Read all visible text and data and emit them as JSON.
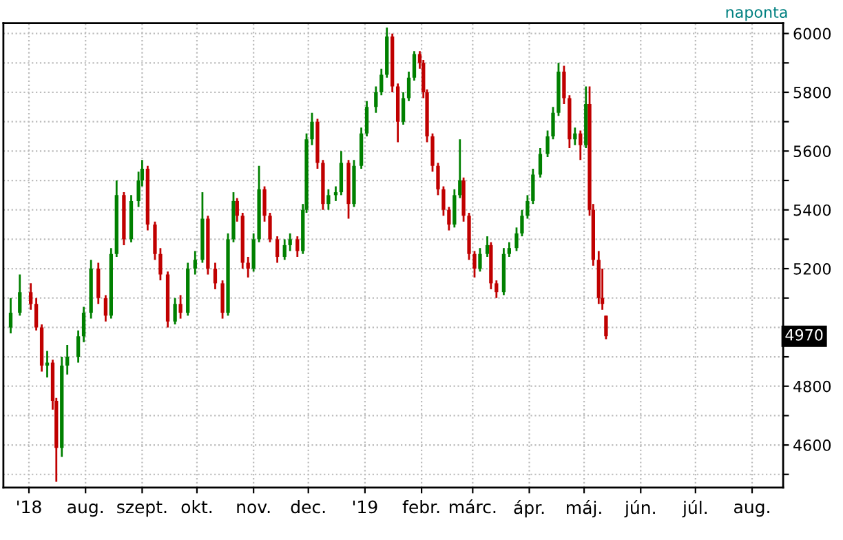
{
  "chart_data": {
    "type": "candlestick",
    "x": [
      "2018-06-21",
      "2018-06-26",
      "2018-07-02",
      "2018-07-05",
      "2018-07-08",
      "2018-07-11",
      "2018-07-14",
      "2018-07-16",
      "2018-07-19",
      "2018-07-22",
      "2018-07-28",
      "2018-07-31",
      "2018-08-04",
      "2018-08-08",
      "2018-08-12",
      "2018-08-15",
      "2018-08-18",
      "2018-08-22",
      "2018-08-26",
      "2018-08-30",
      "2018-09-01",
      "2018-09-04",
      "2018-09-08",
      "2018-09-11",
      "2018-09-15",
      "2018-09-19",
      "2018-09-22",
      "2018-09-26",
      "2018-09-30",
      "2018-10-04",
      "2018-10-07",
      "2018-10-11",
      "2018-10-15",
      "2018-10-18",
      "2018-10-21",
      "2018-10-23",
      "2018-10-26",
      "2018-10-29",
      "2018-11-01",
      "2018-11-04",
      "2018-11-07",
      "2018-11-10",
      "2018-11-14",
      "2018-11-18",
      "2018-11-21",
      "2018-11-25",
      "2018-11-28",
      "2018-11-30",
      "2018-12-03",
      "2018-12-06",
      "2018-12-09",
      "2018-12-12",
      "2018-12-16",
      "2018-12-19",
      "2018-12-23",
      "2018-12-26",
      "2018-12-30",
      "2019-01-02",
      "2019-01-07",
      "2019-01-10",
      "2019-01-13",
      "2019-01-16",
      "2019-01-19",
      "2019-01-22",
      "2019-01-25",
      "2019-01-28",
      "2019-01-31",
      "2019-02-02",
      "2019-02-04",
      "2019-02-07",
      "2019-02-10",
      "2019-02-13",
      "2019-02-16",
      "2019-02-19",
      "2019-02-22",
      "2019-02-24",
      "2019-02-27",
      "2019-03-02",
      "2019-03-05",
      "2019-03-09",
      "2019-03-11",
      "2019-03-14",
      "2019-03-18",
      "2019-03-21",
      "2019-03-25",
      "2019-03-28",
      "2019-03-31",
      "2019-04-03",
      "2019-04-07",
      "2019-04-11",
      "2019-04-14",
      "2019-04-17",
      "2019-04-20",
      "2019-04-23",
      "2019-04-26",
      "2019-04-29",
      "2019-05-02",
      "2019-05-04",
      "2019-05-06",
      "2019-05-09",
      "2019-05-11",
      "2019-05-13"
    ],
    "ohlc": [
      [
        5000,
        5100,
        4980,
        5050
      ],
      [
        5050,
        5180,
        5040,
        5120
      ],
      [
        5120,
        5150,
        5060,
        5080
      ],
      [
        5080,
        5100,
        4990,
        5000
      ],
      [
        5000,
        5010,
        4850,
        4870
      ],
      [
        4870,
        4920,
        4830,
        4880
      ],
      [
        4880,
        4890,
        4720,
        4750
      ],
      [
        4750,
        4760,
        4475,
        4590
      ],
      [
        4590,
        4900,
        4560,
        4870
      ],
      [
        4870,
        4940,
        4840,
        4900
      ],
      [
        4900,
        4990,
        4880,
        4970
      ],
      [
        4970,
        5070,
        4950,
        5050
      ],
      [
        5050,
        5230,
        5030,
        5200
      ],
      [
        5200,
        5220,
        5080,
        5100
      ],
      [
        5100,
        5110,
        5020,
        5040
      ],
      [
        5040,
        5270,
        5030,
        5250
      ],
      [
        5250,
        5500,
        5240,
        5450
      ],
      [
        5450,
        5460,
        5280,
        5300
      ],
      [
        5300,
        5450,
        5290,
        5430
      ],
      [
        5430,
        5530,
        5410,
        5500
      ],
      [
        5500,
        5570,
        5480,
        5540
      ],
      [
        5540,
        5550,
        5330,
        5350
      ],
      [
        5350,
        5360,
        5230,
        5250
      ],
      [
        5250,
        5270,
        5160,
        5180
      ],
      [
        5180,
        5190,
        5000,
        5020
      ],
      [
        5020,
        5100,
        5010,
        5080
      ],
      [
        5080,
        5110,
        5030,
        5050
      ],
      [
        5050,
        5220,
        5040,
        5200
      ],
      [
        5200,
        5260,
        5180,
        5230
      ],
      [
        5230,
        5460,
        5220,
        5370
      ],
      [
        5370,
        5380,
        5180,
        5200
      ],
      [
        5200,
        5220,
        5130,
        5150
      ],
      [
        5150,
        5160,
        5030,
        5050
      ],
      [
        5050,
        5320,
        5040,
        5300
      ],
      [
        5300,
        5460,
        5290,
        5430
      ],
      [
        5430,
        5440,
        5360,
        5380
      ],
      [
        5380,
        5390,
        5200,
        5220
      ],
      [
        5220,
        5240,
        5170,
        5200
      ],
      [
        5200,
        5320,
        5190,
        5300
      ],
      [
        5300,
        5550,
        5290,
        5470
      ],
      [
        5470,
        5480,
        5360,
        5380
      ],
      [
        5380,
        5390,
        5290,
        5300
      ],
      [
        5300,
        5310,
        5220,
        5240
      ],
      [
        5240,
        5300,
        5230,
        5280
      ],
      [
        5280,
        5320,
        5260,
        5300
      ],
      [
        5300,
        5310,
        5240,
        5260
      ],
      [
        5260,
        5420,
        5250,
        5400
      ],
      [
        5400,
        5660,
        5390,
        5640
      ],
      [
        5640,
        5730,
        5620,
        5700
      ],
      [
        5700,
        5710,
        5540,
        5560
      ],
      [
        5560,
        5570,
        5400,
        5420
      ],
      [
        5420,
        5470,
        5400,
        5450
      ],
      [
        5450,
        5480,
        5430,
        5460
      ],
      [
        5460,
        5600,
        5450,
        5560
      ],
      [
        5560,
        5570,
        5370,
        5420
      ],
      [
        5420,
        5570,
        5410,
        5550
      ],
      [
        5550,
        5680,
        5540,
        5660
      ],
      [
        5660,
        5770,
        5650,
        5750
      ],
      [
        5750,
        5820,
        5730,
        5800
      ],
      [
        5800,
        5880,
        5790,
        5860
      ],
      [
        5860,
        6020,
        5850,
        5990
      ],
      [
        5990,
        6000,
        5800,
        5820
      ],
      [
        5820,
        5830,
        5630,
        5700
      ],
      [
        5700,
        5800,
        5690,
        5780
      ],
      [
        5780,
        5870,
        5770,
        5850
      ],
      [
        5850,
        5940,
        5840,
        5930
      ],
      [
        5930,
        5940,
        5880,
        5900
      ],
      [
        5900,
        5910,
        5780,
        5800
      ],
      [
        5800,
        5810,
        5630,
        5650
      ],
      [
        5650,
        5660,
        5530,
        5550
      ],
      [
        5550,
        5560,
        5450,
        5470
      ],
      [
        5470,
        5480,
        5380,
        5400
      ],
      [
        5400,
        5410,
        5330,
        5350
      ],
      [
        5350,
        5470,
        5340,
        5450
      ],
      [
        5450,
        5640,
        5440,
        5500
      ],
      [
        5500,
        5510,
        5360,
        5380
      ],
      [
        5380,
        5390,
        5230,
        5250
      ],
      [
        5250,
        5260,
        5170,
        5200
      ],
      [
        5200,
        5270,
        5190,
        5250
      ],
      [
        5250,
        5310,
        5240,
        5280
      ],
      [
        5280,
        5290,
        5130,
        5150
      ],
      [
        5150,
        5160,
        5100,
        5120
      ],
      [
        5120,
        5270,
        5110,
        5250
      ],
      [
        5250,
        5290,
        5240,
        5270
      ],
      [
        5270,
        5340,
        5260,
        5320
      ],
      [
        5320,
        5400,
        5310,
        5380
      ],
      [
        5380,
        5450,
        5370,
        5430
      ],
      [
        5430,
        5540,
        5420,
        5520
      ],
      [
        5520,
        5610,
        5510,
        5590
      ],
      [
        5590,
        5670,
        5580,
        5650
      ],
      [
        5650,
        5750,
        5640,
        5730
      ],
      [
        5730,
        5900,
        5720,
        5870
      ],
      [
        5870,
        5890,
        5760,
        5780
      ],
      [
        5780,
        5790,
        5610,
        5640
      ],
      [
        5640,
        5680,
        5620,
        5660
      ],
      [
        5660,
        5670,
        5570,
        5620
      ],
      [
        5620,
        5820,
        5610,
        5760
      ],
      [
        5760,
        5820,
        5380,
        5400
      ],
      [
        5400,
        5420,
        5210,
        5230
      ],
      [
        5230,
        5260,
        5080,
        5100
      ],
      [
        5100,
        5200,
        5060,
        5080
      ],
      [
        5040,
        5040,
        4960,
        4970
      ]
    ],
    "colors": [
      "#008000",
      "#008000",
      "#c00000",
      "#c00000",
      "#c00000",
      "#008000",
      "#c00000",
      "#c00000",
      "#008000",
      "#008000",
      "#008000",
      "#008000",
      "#008000",
      "#c00000",
      "#c00000",
      "#008000",
      "#008000",
      "#c00000",
      "#008000",
      "#008000",
      "#008000",
      "#c00000",
      "#c00000",
      "#c00000",
      "#c00000",
      "#008000",
      "#c00000",
      "#008000",
      "#008000",
      "#008000",
      "#c00000",
      "#c00000",
      "#c00000",
      "#008000",
      "#008000",
      "#c00000",
      "#c00000",
      "#c00000",
      "#008000",
      "#008000",
      "#c00000",
      "#c00000",
      "#c00000",
      "#008000",
      "#008000",
      "#c00000",
      "#008000",
      "#008000",
      "#008000",
      "#c00000",
      "#c00000",
      "#008000",
      "#008000",
      "#008000",
      "#c00000",
      "#008000",
      "#008000",
      "#008000",
      "#008000",
      "#008000",
      "#008000",
      "#c00000",
      "#c00000",
      "#008000",
      "#008000",
      "#008000",
      "#c00000",
      "#c00000",
      "#c00000",
      "#c00000",
      "#c00000",
      "#c00000",
      "#c00000",
      "#008000",
      "#008000",
      "#c00000",
      "#c00000",
      "#c00000",
      "#008000",
      "#008000",
      "#c00000",
      "#c00000",
      "#008000",
      "#008000",
      "#008000",
      "#008000",
      "#008000",
      "#008000",
      "#008000",
      "#008000",
      "#008000",
      "#008000",
      "#c00000",
      "#c00000",
      "#008000",
      "#c00000",
      "#008000",
      "#c00000",
      "#c00000",
      "#c00000",
      "#c00000",
      "#c00000"
    ],
    "xlim": [
      "2018-06-17",
      "2019-08-18"
    ],
    "xticks": [
      {
        "value": "2018-07-01",
        "label": "'18"
      },
      {
        "value": "2018-08-01",
        "label": "aug."
      },
      {
        "value": "2018-09-01",
        "label": "szept."
      },
      {
        "value": "2018-10-01",
        "label": "okt."
      },
      {
        "value": "2018-11-01",
        "label": "nov."
      },
      {
        "value": "2018-12-01",
        "label": "dec."
      },
      {
        "value": "2019-01-01",
        "label": "'19"
      },
      {
        "value": "2019-02-01",
        "label": "febr."
      },
      {
        "value": "2019-03-01",
        "label": "márc."
      },
      {
        "value": "2019-04-01",
        "label": "ápr."
      },
      {
        "value": "2019-05-01",
        "label": "máj."
      },
      {
        "value": "2019-06-01",
        "label": "jún."
      },
      {
        "value": "2019-07-01",
        "label": "júl."
      },
      {
        "value": "2019-08-01",
        "label": "aug."
      }
    ],
    "ylim": [
      4455,
      6035
    ],
    "yticks": [
      {
        "value": 4500,
        "label": null
      },
      4600,
      {
        "value": 4700,
        "label": null
      },
      4800,
      {
        "value": 4900,
        "label": null
      },
      {
        "value": 5000,
        "label": null
      },
      {
        "value": 5100,
        "label": null
      },
      5200,
      {
        "value": 5300,
        "label": null
      },
      5400,
      {
        "value": 5500,
        "label": null
      },
      5600,
      {
        "value": 5700,
        "label": null
      },
      5800,
      {
        "value": 5900,
        "label": null
      },
      6000
    ],
    "grid": true,
    "annotations": [
      "naponta",
      {
        "text": "4970",
        "y": 4970
      }
    ]
  }
}
